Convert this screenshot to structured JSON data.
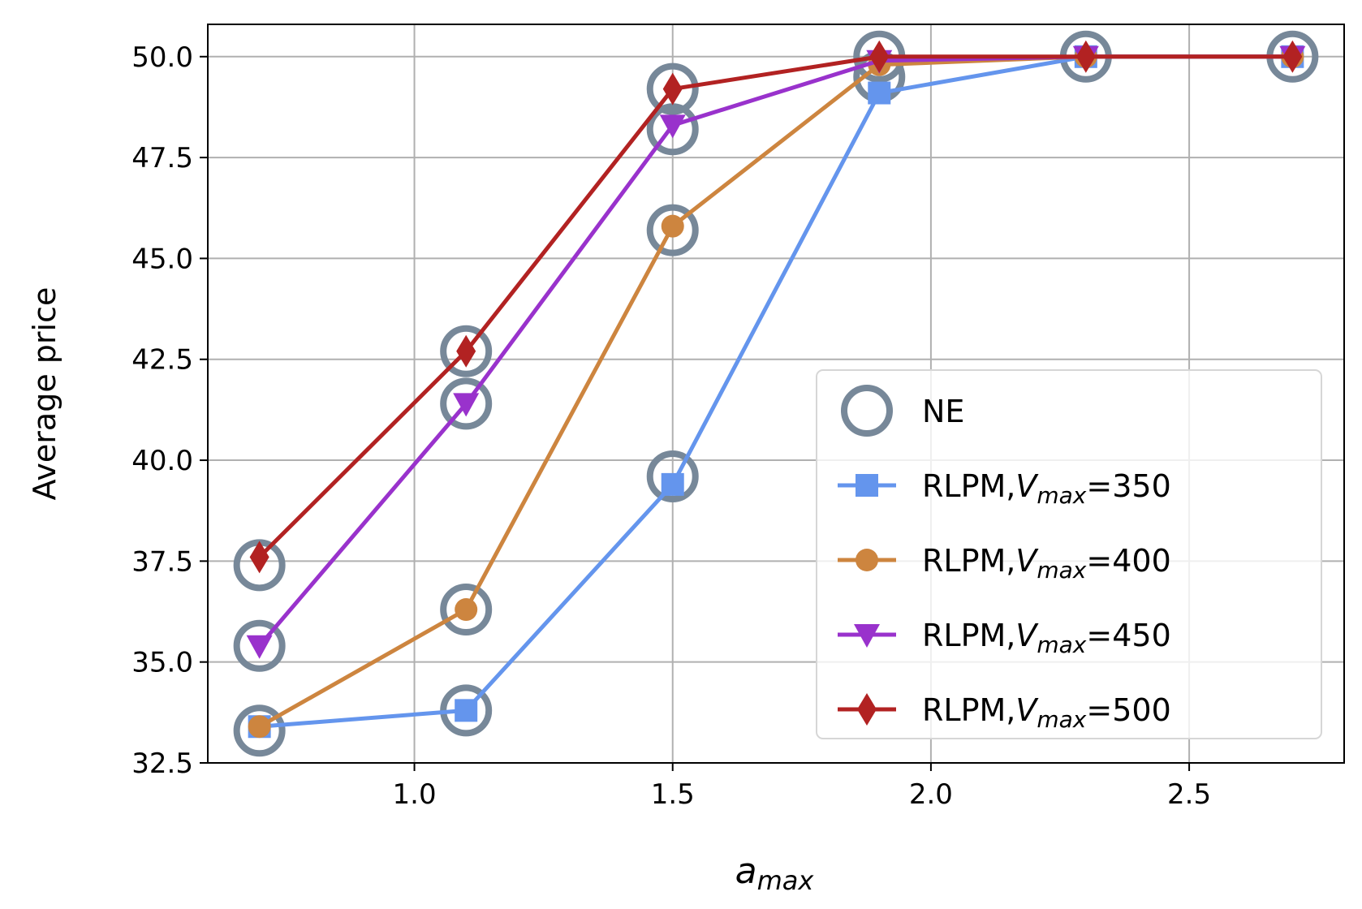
{
  "chart_data": {
    "type": "line",
    "xlabel": "a",
    "xlabel_sub": "max",
    "ylabel": "Average price",
    "xlim": [
      0.6,
      2.8
    ],
    "ylim": [
      32.5,
      50.8
    ],
    "xticks": [
      1.0,
      1.5,
      2.0,
      2.5
    ],
    "xtick_labels": [
      "1.0",
      "1.5",
      "2.0",
      "2.5"
    ],
    "yticks": [
      32.5,
      35.0,
      37.5,
      40.0,
      42.5,
      45.0,
      47.5,
      50.0
    ],
    "ytick_labels": [
      "32.5",
      "35.0",
      "37.5",
      "40.0",
      "42.5",
      "45.0",
      "47.5",
      "50.0"
    ],
    "grid": true,
    "legend_position": "lower-right",
    "x": [
      0.7,
      1.1,
      1.5,
      1.9,
      2.3,
      2.7
    ],
    "ne": {
      "name": "NE",
      "color": "#778899",
      "points": [
        [
          0.7,
          33.3
        ],
        [
          0.7,
          35.4
        ],
        [
          0.7,
          37.4
        ],
        [
          1.1,
          33.8
        ],
        [
          1.1,
          36.3
        ],
        [
          1.1,
          41.4
        ],
        [
          1.1,
          42.7
        ],
        [
          1.5,
          39.6
        ],
        [
          1.5,
          45.7
        ],
        [
          1.5,
          48.2
        ],
        [
          1.5,
          49.2
        ],
        [
          1.9,
          49.5
        ],
        [
          1.9,
          50.0
        ],
        [
          2.3,
          50.0
        ],
        [
          2.7,
          50.0
        ]
      ]
    },
    "series": [
      {
        "name_prefix": "RLPM,",
        "name_var": "V",
        "name_sub": "max",
        "name_suffix": "=350",
        "marker": "square",
        "color": "#6495ED",
        "values": [
          33.4,
          33.8,
          39.4,
          49.1,
          50.0,
          50.0
        ]
      },
      {
        "name_prefix": "RLPM,",
        "name_var": "V",
        "name_sub": "max",
        "name_suffix": "=400",
        "marker": "circle",
        "color": "#CD853F",
        "values": [
          33.4,
          36.3,
          45.8,
          49.8,
          50.0,
          50.0
        ]
      },
      {
        "name_prefix": "RLPM,",
        "name_var": "V",
        "name_sub": "max",
        "name_suffix": "=450",
        "marker": "triangle-down",
        "color": "#9932CC",
        "values": [
          35.4,
          41.4,
          48.3,
          49.9,
          50.0,
          50.0
        ]
      },
      {
        "name_prefix": "RLPM,",
        "name_var": "V",
        "name_sub": "max",
        "name_suffix": "=500",
        "marker": "diamond",
        "color": "#B22222",
        "values": [
          37.6,
          42.7,
          49.2,
          50.0,
          50.0,
          50.0
        ]
      }
    ]
  }
}
